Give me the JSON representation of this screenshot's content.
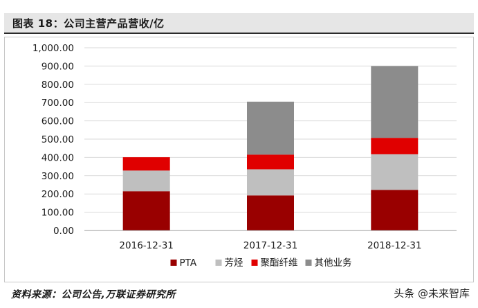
{
  "header": {
    "title": "图表 18：公司主营产品营收/亿"
  },
  "chart_data": {
    "type": "bar",
    "stacked": true,
    "categories": [
      "2016-12-31",
      "2017-12-31",
      "2018-12-31"
    ],
    "series": [
      {
        "name": "PTA",
        "color": "#990000",
        "values": [
          215,
          192,
          222
        ]
      },
      {
        "name": "芳烃",
        "color": "#bfbfbf",
        "values": [
          113,
          143,
          195
        ]
      },
      {
        "name": "聚酯纤维",
        "color": "#e00000",
        "values": [
          73,
          80,
          90
        ]
      },
      {
        "name": "其他业务",
        "color": "#8c8c8c",
        "values": [
          0,
          290,
          393
        ]
      }
    ],
    "ylim": [
      0,
      1000
    ],
    "yticks": [
      "0.00",
      "100.00",
      "200.00",
      "300.00",
      "400.00",
      "500.00",
      "600.00",
      "700.00",
      "800.00",
      "900.00",
      "1,000.00"
    ],
    "grid": true,
    "legend": "bottom",
    "title": "",
    "xlabel": "",
    "ylabel": ""
  },
  "footer": {
    "source": "资料来源：公司公告,万联证券研究所",
    "watermark": "头条 @未来智库"
  }
}
